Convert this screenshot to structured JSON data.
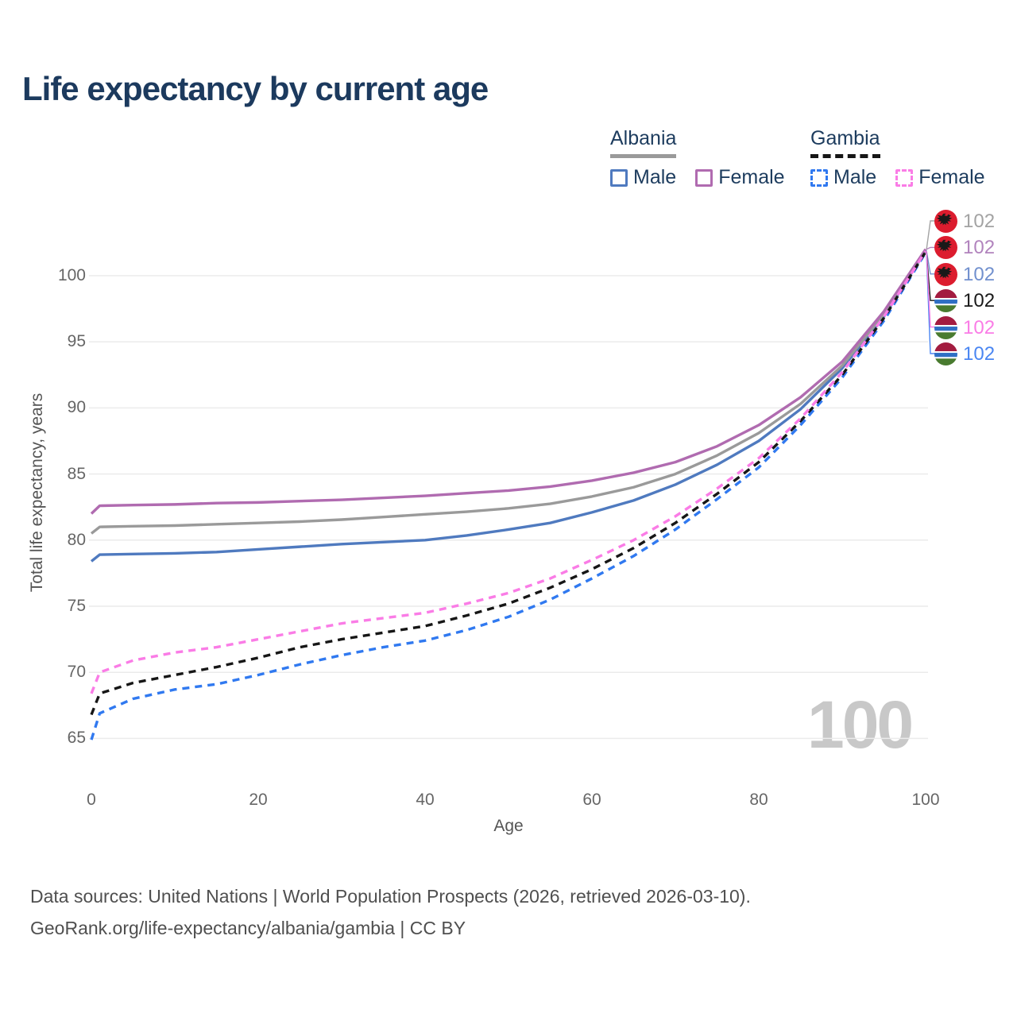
{
  "title": "Life expectancy by current age",
  "legend": {
    "albania": {
      "label": "Albania",
      "male": "Male",
      "female": "Female"
    },
    "gambia": {
      "label": "Gambia",
      "male": "Male",
      "female": "Female"
    }
  },
  "colors": {
    "albania_both": "#9a9a9a",
    "albania_female": "#b06bb0",
    "albania_male": "#4f7abf",
    "gambia_both": "#161616",
    "gambia_female": "#fa7ce6",
    "gambia_male": "#3079f0",
    "title_text": "#1c3a5e",
    "tick_text": "#666666",
    "watermark_text": "#c8c8c8"
  },
  "end_labels": [
    {
      "value": "102",
      "color": "#a3a3a3",
      "flag": "albania",
      "series": "Albania — Both sexes"
    },
    {
      "value": "102",
      "color": "#b183bd",
      "flag": "albania",
      "series": "Albania — Female"
    },
    {
      "value": "102",
      "color": "#7190ce",
      "flag": "albania",
      "series": "Albania — Male"
    },
    {
      "value": "102",
      "color": "#1a1a1a",
      "flag": "gambia",
      "series": "Gambia — Both sexes"
    },
    {
      "value": "102",
      "color": "#fa7ce6",
      "flag": "gambia",
      "series": "Gambia — Female"
    },
    {
      "value": "102",
      "color": "#4a86f2",
      "flag": "gambia",
      "series": "Gambia — Male"
    }
  ],
  "watermark": "100",
  "footer": {
    "line1": "Data sources: United Nations | World Population Prospects (2026, retrieved 2026-03-10).",
    "line2": "GeoRank.org/life-expectancy/albania/gambia | CC BY"
  },
  "chart_data": {
    "type": "line",
    "title": "Life expectancy by current age",
    "xlabel": "Age",
    "ylabel": "Total life expectancy, years",
    "xlim": [
      0,
      100
    ],
    "ylim": [
      63.5,
      102.5
    ],
    "xticks": [
      0,
      20,
      40,
      60,
      80,
      100
    ],
    "yticks": [
      65,
      70,
      75,
      80,
      85,
      90,
      95,
      100
    ],
    "grid": true,
    "legend_position": "top-right",
    "x": [
      0,
      1,
      5,
      10,
      15,
      20,
      25,
      30,
      35,
      40,
      45,
      50,
      55,
      60,
      65,
      70,
      75,
      80,
      85,
      90,
      95,
      100
    ],
    "series": [
      {
        "name": "Albania — Male",
        "color": "#4f7abf",
        "dash": false,
        "end_label_row": 2,
        "values": [
          78.4,
          78.9,
          78.95,
          79.0,
          79.1,
          79.3,
          79.5,
          79.7,
          79.85,
          80.0,
          80.35,
          80.8,
          81.3,
          82.1,
          83.0,
          84.2,
          85.7,
          87.5,
          89.9,
          93.0,
          96.9,
          101.9
        ]
      },
      {
        "name": "Albania — Both sexes",
        "color": "#9a9a9a",
        "dash": false,
        "end_label_row": 0,
        "values": [
          80.5,
          81.0,
          81.05,
          81.1,
          81.2,
          81.3,
          81.4,
          81.55,
          81.75,
          81.95,
          82.15,
          82.4,
          82.75,
          83.3,
          84.0,
          85.0,
          86.4,
          88.1,
          90.3,
          93.2,
          97.1,
          101.95
        ]
      },
      {
        "name": "Albania — Female",
        "color": "#b06bb0",
        "dash": false,
        "end_label_row": 1,
        "values": [
          82.0,
          82.6,
          82.65,
          82.7,
          82.8,
          82.85,
          82.95,
          83.05,
          83.2,
          83.35,
          83.55,
          83.75,
          84.05,
          84.5,
          85.1,
          85.9,
          87.1,
          88.7,
          90.8,
          93.5,
          97.3,
          102.0
        ]
      },
      {
        "name": "Gambia — Male",
        "color": "#3079f0",
        "dash": true,
        "end_label_row": 5,
        "values": [
          64.9,
          66.9,
          68.0,
          68.7,
          69.1,
          69.8,
          70.6,
          71.3,
          71.9,
          72.4,
          73.2,
          74.2,
          75.5,
          77.1,
          78.8,
          80.8,
          83.1,
          85.5,
          88.7,
          92.3,
          96.6,
          101.75
        ]
      },
      {
        "name": "Gambia — Both sexes",
        "color": "#161616",
        "dash": true,
        "end_label_row": 3,
        "values": [
          66.8,
          68.4,
          69.2,
          69.8,
          70.4,
          71.1,
          71.9,
          72.5,
          73.0,
          73.5,
          74.3,
          75.2,
          76.4,
          77.8,
          79.4,
          81.3,
          83.5,
          85.9,
          89.0,
          92.5,
          96.8,
          101.8
        ]
      },
      {
        "name": "Gambia — Female",
        "color": "#fa7ce6",
        "dash": true,
        "end_label_row": 4,
        "values": [
          68.4,
          70.0,
          70.9,
          71.5,
          71.9,
          72.5,
          73.1,
          73.7,
          74.1,
          74.5,
          75.2,
          76.0,
          77.1,
          78.5,
          80.0,
          81.8,
          83.9,
          86.2,
          89.2,
          92.7,
          96.9,
          101.85
        ]
      }
    ]
  }
}
